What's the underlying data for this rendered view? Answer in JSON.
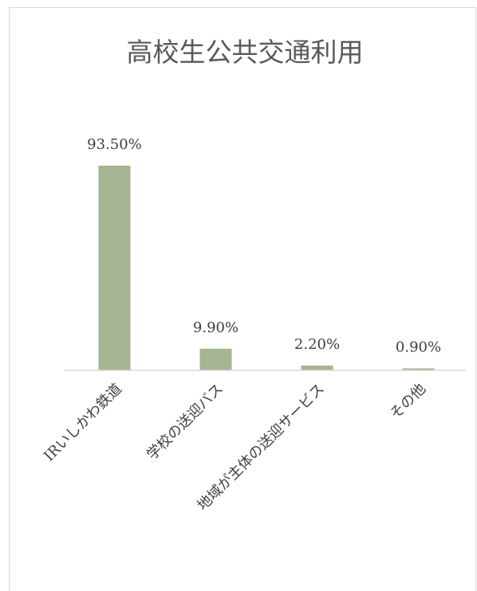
{
  "chart_data": {
    "type": "bar",
    "title": "高校生公共交通利用",
    "categories": [
      "IRいしかわ鉄道",
      "学校の送迎バス",
      "地域が主体の送迎サービス",
      "その他"
    ],
    "values": [
      93.5,
      9.9,
      2.2,
      0.9
    ],
    "data_labels": [
      "93.50%",
      "9.90%",
      "2.20%",
      "0.90%"
    ],
    "unit": "%",
    "ylim": [
      0,
      100
    ],
    "grid": false,
    "legend": "none",
    "bar_color": "#a5b592",
    "axis_color": "#d9d9d9"
  }
}
